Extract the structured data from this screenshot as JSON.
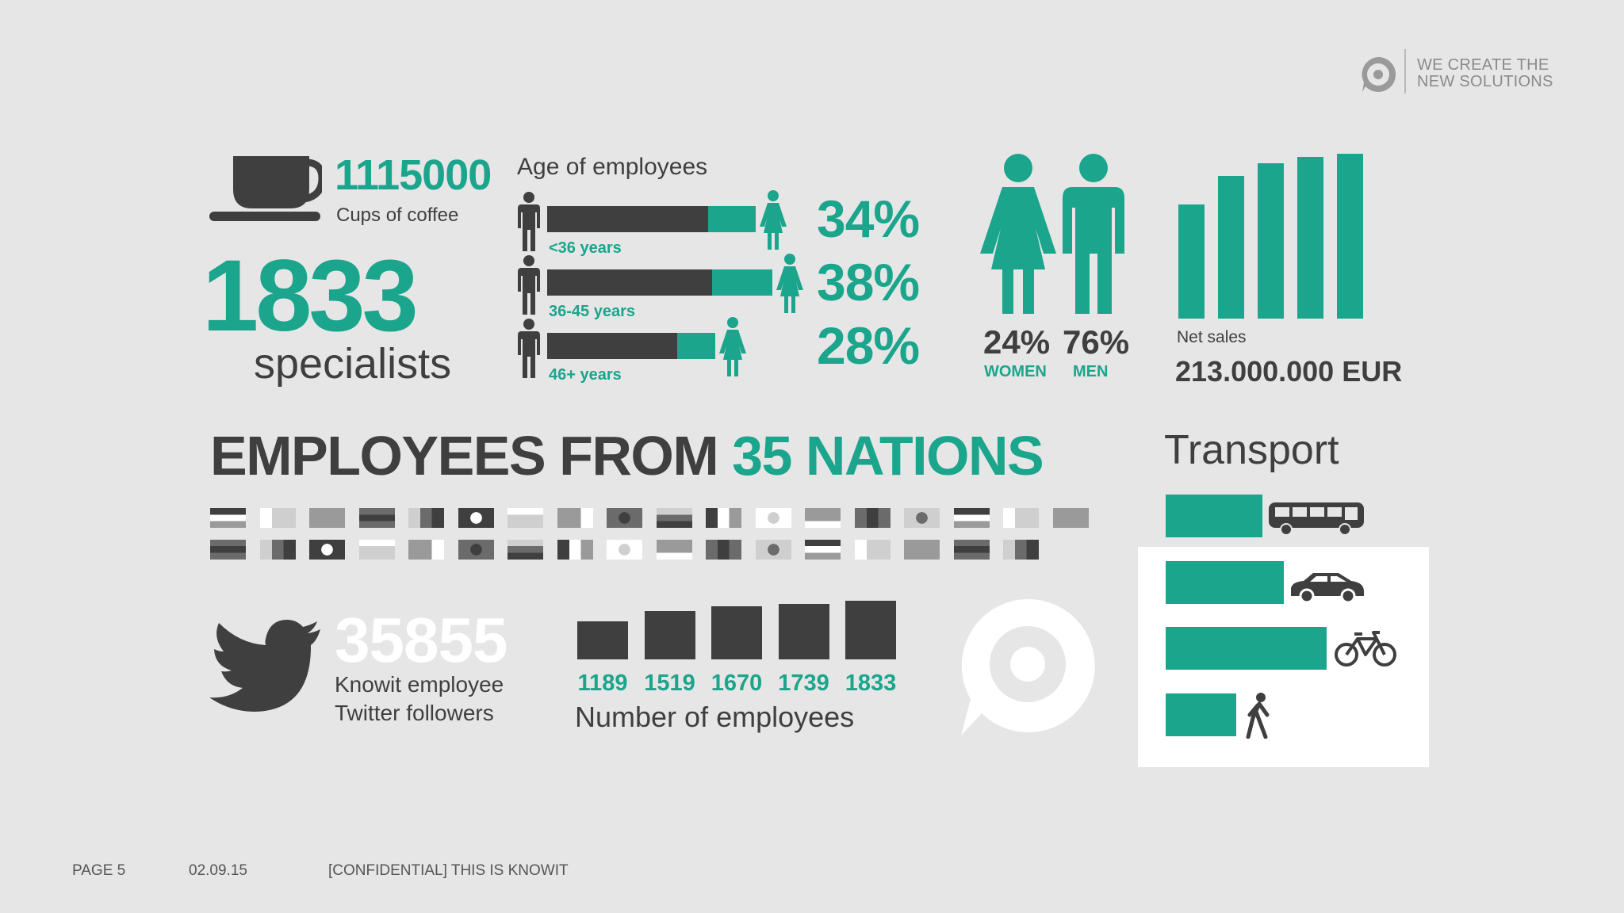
{
  "logo": {
    "line1": "WE CREATE THE",
    "line2": "NEW SOLUTIONS"
  },
  "coffee": {
    "count": "1115000",
    "label": "Cups of coffee"
  },
  "specialists": {
    "count": "1833",
    "label": "specialists"
  },
  "age": {
    "title": "Age of employees",
    "groups": [
      {
        "label": "<36 years",
        "percent": "34%",
        "share": 0.34
      },
      {
        "label": "36-45 years",
        "percent": "38%",
        "share": 0.38
      },
      {
        "label": "46+ years",
        "percent": "28%",
        "share": 0.28
      }
    ]
  },
  "gender": {
    "women_pct": "24%",
    "women_label": "WOMEN",
    "men_pct": "76%",
    "men_label": "MEN"
  },
  "net_sales": {
    "label": "Net sales",
    "value": "213.000.000 EUR"
  },
  "nations": {
    "title_dark": "EMPLOYEES FROM",
    "title_teal": "35 NATIONS",
    "flag_count": 35
  },
  "twitter": {
    "count": "35855",
    "label_line1": "Knowit employee",
    "label_line2": "Twitter followers"
  },
  "chart_data": {
    "type": "bar",
    "title": "Number of employees",
    "categories": [
      "1189",
      "1519",
      "1670",
      "1739",
      "1833"
    ],
    "values": [
      1189,
      1519,
      1670,
      1739,
      1833
    ],
    "ylim": [
      0,
      1833
    ]
  },
  "transport": {
    "title": "Transport",
    "modes": [
      {
        "icon": "bus-icon",
        "share": 0.45
      },
      {
        "icon": "car-icon",
        "share": 0.55
      },
      {
        "icon": "bicycle-icon",
        "share": 0.75
      },
      {
        "icon": "walking-person-icon",
        "share": 0.33
      }
    ]
  },
  "footer": {
    "page": "PAGE  5",
    "date": "02.09.15",
    "text": "[CONFIDENTIAL]  THIS IS KNOWIT"
  },
  "colors": {
    "teal": "#1aa58c",
    "dark": "#3f3f3f",
    "background": "#e6e6e6"
  }
}
